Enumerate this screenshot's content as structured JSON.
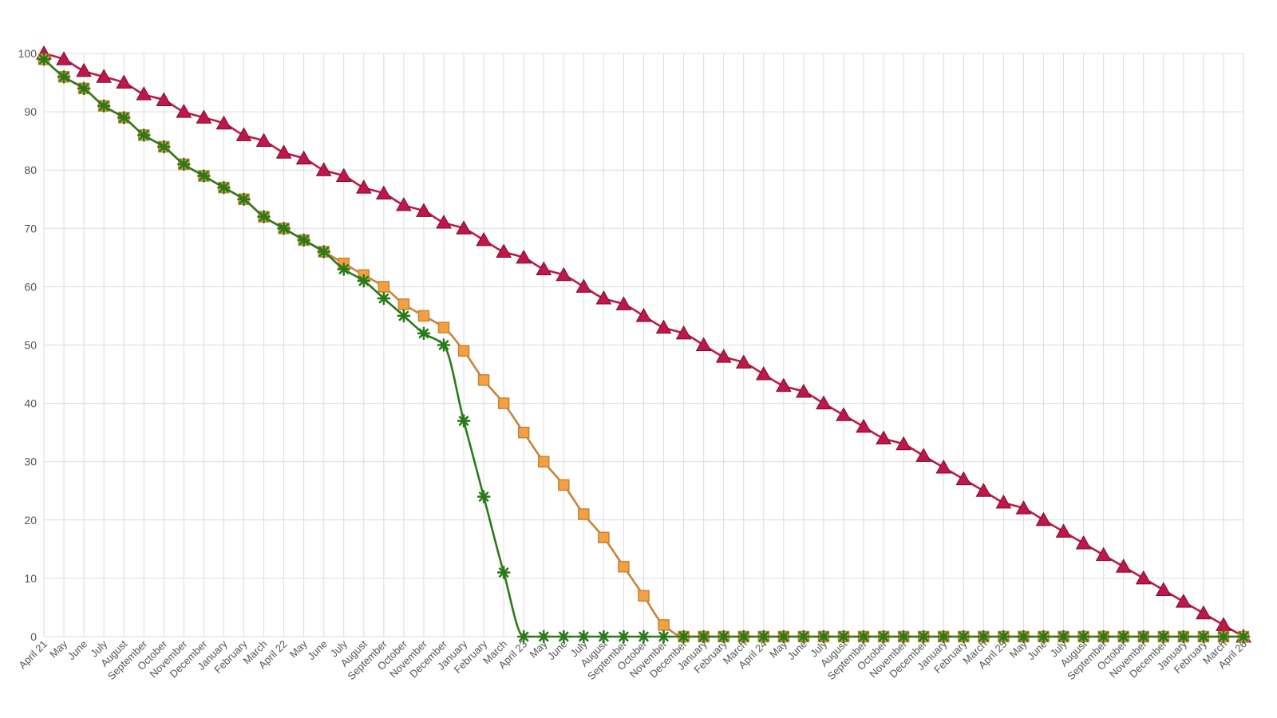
{
  "chart_data": {
    "type": "line",
    "title": "",
    "xlabel": "",
    "ylabel": "",
    "ylim": [
      0,
      100
    ],
    "yticks": [
      0,
      10,
      20,
      30,
      40,
      50,
      60,
      70,
      80,
      90,
      100
    ],
    "grid": true,
    "legend": "none",
    "categories": [
      "April 21",
      "May",
      "June",
      "July",
      "August",
      "September",
      "October",
      "November",
      "December",
      "January",
      "February",
      "March",
      "April 22",
      "May",
      "June",
      "July",
      "August",
      "September",
      "October",
      "November",
      "December",
      "January",
      "February",
      "March",
      "April 23",
      "May",
      "June",
      "July",
      "August",
      "September",
      "October",
      "November",
      "December",
      "January",
      "February",
      "March",
      "April 24",
      "May",
      "June",
      "July",
      "August",
      "September",
      "October",
      "November",
      "December",
      "January",
      "February",
      "March",
      "April 25",
      "May",
      "June",
      "July",
      "August",
      "September",
      "October",
      "November",
      "December",
      "January",
      "February",
      "March",
      "April 26"
    ],
    "series": [
      {
        "color": "#c0174a",
        "marker": "triangle",
        "values": [
          100,
          99,
          97,
          96,
          95,
          93,
          92,
          90,
          89,
          88,
          86,
          85,
          83,
          82,
          80,
          79,
          77,
          76,
          74,
          73,
          71,
          70,
          68,
          66,
          65,
          63,
          62,
          60,
          58,
          57,
          55,
          53,
          52,
          50,
          48,
          47,
          45,
          43,
          42,
          40,
          38,
          36,
          34,
          33,
          31,
          29,
          27,
          25,
          23,
          22,
          20,
          18,
          16,
          14,
          12,
          10,
          8,
          6,
          4,
          2,
          0
        ]
      },
      {
        "color": "#f5a040",
        "line_color": "#c8823a",
        "marker": "square",
        "values": [
          99,
          96,
          94,
          91,
          89,
          86,
          84,
          81,
          79,
          77,
          75,
          72,
          70,
          68,
          66,
          64,
          62,
          60,
          57,
          55,
          53,
          49,
          44,
          40,
          35,
          30,
          26,
          21,
          17,
          12,
          7,
          2,
          0,
          0,
          0,
          0,
          0,
          0,
          0,
          0,
          0,
          0,
          0,
          0,
          0,
          0,
          0,
          0,
          0,
          0,
          0,
          0,
          0,
          0,
          0,
          0,
          0,
          0,
          0,
          0,
          0
        ]
      },
      {
        "color": "#2a7a1a",
        "marker": "asterisk",
        "values": [
          99,
          96,
          94,
          91,
          89,
          86,
          84,
          81,
          79,
          77,
          75,
          72,
          70,
          68,
          66,
          63,
          61,
          58,
          55,
          52,
          50,
          37,
          24,
          11,
          0,
          0,
          0,
          0,
          0,
          0,
          0,
          0,
          0,
          0,
          0,
          0,
          0,
          0,
          0,
          0,
          0,
          0,
          0,
          0,
          0,
          0,
          0,
          0,
          0,
          0,
          0,
          0,
          0,
          0,
          0,
          0,
          0,
          0,
          0,
          0,
          0
        ]
      }
    ]
  }
}
